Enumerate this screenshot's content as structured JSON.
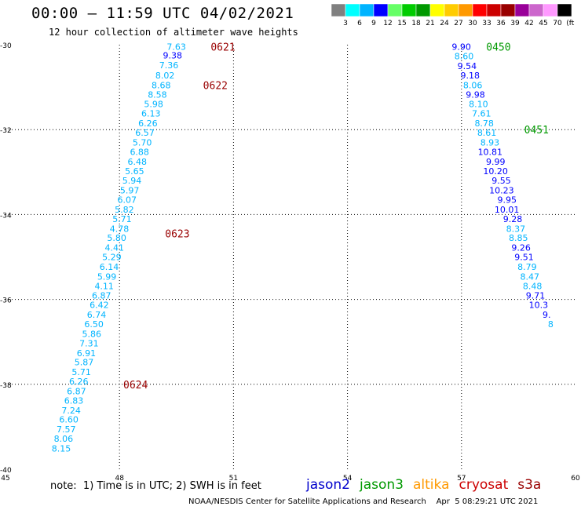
{
  "header": {
    "title": "00:00 – 11:59 UTC 04/02/2021",
    "subtitle": "12 hour collection of altimeter wave heights"
  },
  "colorbar": {
    "labels": [
      "3",
      "6",
      "9",
      "12",
      "15",
      "18",
      "21",
      "24",
      "27",
      "30",
      "33",
      "36",
      "39",
      "42",
      "45",
      "70",
      "(ft)"
    ],
    "colors": [
      "#808080",
      "#00ffff",
      "#00b4ff",
      "#0000ff",
      "#66ff66",
      "#00cc00",
      "#009900",
      "#ffff00",
      "#ffcc00",
      "#ff9900",
      "#ff0000",
      "#cc0000",
      "#990000",
      "#990099",
      "#cc66cc",
      "#ff99ff",
      "#000000"
    ]
  },
  "footer": {
    "note": "note:  1) Time is in UTC; 2) SWH is in feet",
    "legend": [
      {
        "name": "jason2",
        "color": "#0000cc"
      },
      {
        "name": "jason3",
        "color": "#009900"
      },
      {
        "name": "altika",
        "color": "#ff9900"
      },
      {
        "name": "cryosat",
        "color": "#cc0000"
      },
      {
        "name": "s3a",
        "color": "#990000"
      }
    ],
    "credit": "NOAA/NESDIS Center for Satellite Applications and Research    Apr  5 08:29:21 UTC 2021"
  },
  "chart_data": {
    "type": "scatter",
    "title": "00:00 – 11:59 UTC 04/02/2021",
    "subtitle": "12 hour collection of altimeter wave heights",
    "xlabel": "",
    "ylabel": "",
    "xlim": [
      45,
      60
    ],
    "ylim": [
      -40,
      -30
    ],
    "xticks": [
      45,
      48,
      51,
      54,
      57,
      60
    ],
    "yticks": [
      -30,
      -32,
      -34,
      -36,
      -38,
      -40
    ],
    "xtick_labels": [
      "45",
      "48",
      "51",
      "54",
      "57",
      "60"
    ],
    "ytick_labels": [
      "-30",
      "-32",
      "-34",
      "-36",
      "-38",
      "-40"
    ],
    "grid": true,
    "color_scale": {
      "unit": "ft"
    },
    "time_labels": [
      {
        "text": "0621",
        "x": 50.4,
        "y": -30.05,
        "color": "#990000"
      },
      {
        "text": "0622",
        "x": 50.2,
        "y": -30.95,
        "color": "#990000"
      },
      {
        "text": "0623",
        "x": 49.2,
        "y": -34.45,
        "color": "#990000"
      },
      {
        "text": "0624",
        "x": 48.1,
        "y": -38.0,
        "color": "#990000"
      },
      {
        "text": "0450",
        "x": 57.65,
        "y": -30.05,
        "color": "#009900"
      },
      {
        "text": "0451",
        "x": 58.65,
        "y": -32.0,
        "color": "#009900"
      }
    ],
    "series": [
      {
        "name": "s3a",
        "color": "#00b4ff",
        "points": [
          {
            "x": 49.75,
            "y": -30.05,
            "v": "7.63",
            "c": "#00b4ff"
          },
          {
            "x": 49.65,
            "y": -30.25,
            "v": "9.38",
            "c": "#0000ff"
          },
          {
            "x": 49.55,
            "y": -30.48,
            "v": "7.36",
            "c": "#00b4ff"
          },
          {
            "x": 49.45,
            "y": -30.72,
            "v": "8.02",
            "c": "#00b4ff"
          },
          {
            "x": 49.35,
            "y": -30.95,
            "v": "8.68",
            "c": "#00b4ff"
          },
          {
            "x": 49.25,
            "y": -31.17,
            "v": "8.58",
            "c": "#00b4ff"
          },
          {
            "x": 49.15,
            "y": -31.4,
            "v": "5.98",
            "c": "#00b4ff"
          },
          {
            "x": 49.08,
            "y": -31.62,
            "v": "6.13",
            "c": "#00b4ff"
          },
          {
            "x": 49.0,
            "y": -31.85,
            "v": "6.26",
            "c": "#00b4ff"
          },
          {
            "x": 48.92,
            "y": -32.07,
            "v": "6.57",
            "c": "#00b4ff"
          },
          {
            "x": 48.85,
            "y": -32.3,
            "v": "5.70",
            "c": "#00b4ff"
          },
          {
            "x": 48.78,
            "y": -32.52,
            "v": "6.88",
            "c": "#00b4ff"
          },
          {
            "x": 48.72,
            "y": -32.75,
            "v": "6.48",
            "c": "#00b4ff"
          },
          {
            "x": 48.65,
            "y": -32.98,
            "v": "5.65",
            "c": "#00b4ff"
          },
          {
            "x": 48.58,
            "y": -33.2,
            "v": "5.94",
            "c": "#00b4ff"
          },
          {
            "x": 48.52,
            "y": -33.43,
            "v": "5.97",
            "c": "#00b4ff"
          },
          {
            "x": 48.45,
            "y": -33.65,
            "v": "6.07",
            "c": "#00b4ff"
          },
          {
            "x": 48.38,
            "y": -33.88,
            "v": "5.82",
            "c": "#00b4ff"
          },
          {
            "x": 48.32,
            "y": -34.1,
            "v": "5.71",
            "c": "#00b4ff"
          },
          {
            "x": 48.25,
            "y": -34.33,
            "v": "4.78",
            "c": "#00b4ff"
          },
          {
            "x": 48.18,
            "y": -34.55,
            "v": "5.80",
            "c": "#00b4ff"
          },
          {
            "x": 48.12,
            "y": -34.78,
            "v": "4.41",
            "c": "#00b4ff"
          },
          {
            "x": 48.05,
            "y": -35.0,
            "v": "5.29",
            "c": "#00b4ff"
          },
          {
            "x": 47.98,
            "y": -35.23,
            "v": "6.14",
            "c": "#00b4ff"
          },
          {
            "x": 47.92,
            "y": -35.46,
            "v": "5.99",
            "c": "#00b4ff"
          },
          {
            "x": 47.85,
            "y": -35.68,
            "v": "4.11",
            "c": "#00b4ff"
          },
          {
            "x": 47.78,
            "y": -35.91,
            "v": "6.87",
            "c": "#00b4ff"
          },
          {
            "x": 47.72,
            "y": -36.13,
            "v": "6.42",
            "c": "#00b4ff"
          },
          {
            "x": 47.65,
            "y": -36.36,
            "v": "6.74",
            "c": "#00b4ff"
          },
          {
            "x": 47.58,
            "y": -36.58,
            "v": "6.50",
            "c": "#00b4ff"
          },
          {
            "x": 47.52,
            "y": -36.81,
            "v": "5.86",
            "c": "#00b4ff"
          },
          {
            "x": 47.45,
            "y": -37.03,
            "v": "7.31",
            "c": "#00b4ff"
          },
          {
            "x": 47.38,
            "y": -37.26,
            "v": "6.91",
            "c": "#00b4ff"
          },
          {
            "x": 47.32,
            "y": -37.48,
            "v": "5.87",
            "c": "#00b4ff"
          },
          {
            "x": 47.25,
            "y": -37.71,
            "v": "5.71",
            "c": "#00b4ff"
          },
          {
            "x": 47.18,
            "y": -37.93,
            "v": "6.26",
            "c": "#00b4ff"
          },
          {
            "x": 47.12,
            "y": -38.16,
            "v": "6.87",
            "c": "#00b4ff"
          },
          {
            "x": 47.05,
            "y": -38.38,
            "v": "6.83",
            "c": "#00b4ff"
          },
          {
            "x": 46.98,
            "y": -38.61,
            "v": "7.24",
            "c": "#00b4ff"
          },
          {
            "x": 46.92,
            "y": -38.83,
            "v": "6.60",
            "c": "#00b4ff"
          },
          {
            "x": 46.85,
            "y": -39.06,
            "v": "7.57",
            "c": "#00b4ff"
          },
          {
            "x": 46.78,
            "y": -39.28,
            "v": "8.06",
            "c": "#00b4ff"
          },
          {
            "x": 46.72,
            "y": -39.51,
            "v": "8.15",
            "c": "#00b4ff"
          }
        ]
      },
      {
        "name": "jason3",
        "color": "#0000ff",
        "points": [
          {
            "x": 57.25,
            "y": -30.05,
            "v": "9.90",
            "c": "#0000ff"
          },
          {
            "x": 57.32,
            "y": -30.27,
            "v": "8.60",
            "c": "#00b4ff"
          },
          {
            "x": 57.4,
            "y": -30.5,
            "v": "9.54",
            "c": "#0000ff"
          },
          {
            "x": 57.48,
            "y": -30.72,
            "v": "9.18",
            "c": "#0000ff"
          },
          {
            "x": 57.55,
            "y": -30.95,
            "v": "8.06",
            "c": "#00b4ff"
          },
          {
            "x": 57.62,
            "y": -31.17,
            "v": "9.98",
            "c": "#0000ff"
          },
          {
            "x": 57.7,
            "y": -31.4,
            "v": "8.10",
            "c": "#00b4ff"
          },
          {
            "x": 57.78,
            "y": -31.62,
            "v": "7.61",
            "c": "#00b4ff"
          },
          {
            "x": 57.85,
            "y": -31.85,
            "v": "8.78",
            "c": "#00b4ff"
          },
          {
            "x": 57.92,
            "y": -32.07,
            "v": "8.61",
            "c": "#00b4ff"
          },
          {
            "x": 58.0,
            "y": -32.3,
            "v": "8.93",
            "c": "#00b4ff"
          },
          {
            "x": 58.08,
            "y": -32.52,
            "v": "10.81",
            "c": "#0000ff"
          },
          {
            "x": 58.15,
            "y": -32.75,
            "v": "9.99",
            "c": "#0000ff"
          },
          {
            "x": 58.22,
            "y": -32.98,
            "v": "10.20",
            "c": "#0000ff"
          },
          {
            "x": 58.3,
            "y": -33.2,
            "v": "9.55",
            "c": "#0000ff"
          },
          {
            "x": 58.38,
            "y": -33.43,
            "v": "10.23",
            "c": "#0000ff"
          },
          {
            "x": 58.45,
            "y": -33.65,
            "v": "9.95",
            "c": "#0000ff"
          },
          {
            "x": 58.52,
            "y": -33.88,
            "v": "10.01",
            "c": "#0000ff"
          },
          {
            "x": 58.6,
            "y": -34.1,
            "v": "9.28",
            "c": "#0000ff"
          },
          {
            "x": 58.68,
            "y": -34.33,
            "v": "8.37",
            "c": "#00b4ff"
          },
          {
            "x": 58.75,
            "y": -34.55,
            "v": "8.85",
            "c": "#00b4ff"
          },
          {
            "x": 58.82,
            "y": -34.78,
            "v": "9.26",
            "c": "#0000ff"
          },
          {
            "x": 58.9,
            "y": -35.0,
            "v": "9.51",
            "c": "#0000ff"
          },
          {
            "x": 58.98,
            "y": -35.23,
            "v": "8.79",
            "c": "#00b4ff"
          },
          {
            "x": 59.05,
            "y": -35.46,
            "v": "8.47",
            "c": "#00b4ff"
          },
          {
            "x": 59.12,
            "y": -35.68,
            "v": "8.48",
            "c": "#00b4ff"
          },
          {
            "x": 59.2,
            "y": -35.91,
            "v": "9.71",
            "c": "#0000ff"
          },
          {
            "x": 59.28,
            "y": -36.13,
            "v": "10.3",
            "c": "#0000ff"
          },
          {
            "x": 59.35,
            "y": -36.36,
            "v": "9.",
            "c": "#0000ff"
          },
          {
            "x": 59.42,
            "y": -36.58,
            "v": "8",
            "c": "#00b4ff"
          }
        ]
      }
    ]
  }
}
